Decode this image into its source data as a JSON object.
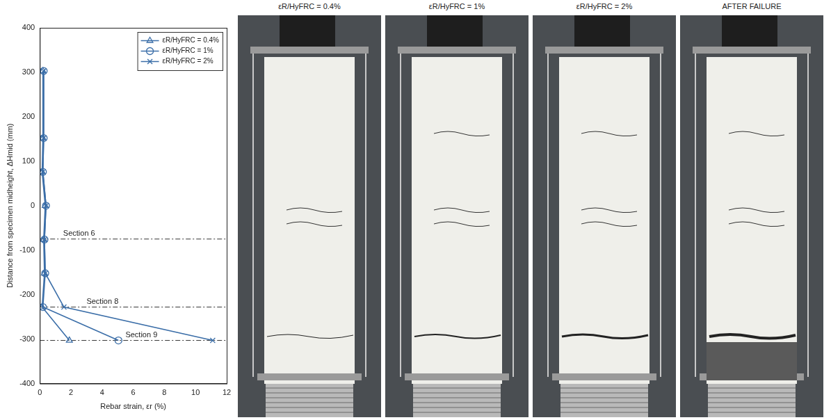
{
  "chart_data": {
    "type": "line",
    "x_label": "Rebar strain, εr (%)",
    "y_label": "Distance from specimen midheight, ΔHmid (mm)",
    "y": [
      303,
      152,
      76,
      0,
      -76,
      -152,
      -228,
      -303
    ],
    "series": [
      {
        "name": "εR/HyFRC = 0.4%",
        "color": "#3b6ea8",
        "marker": "triangle",
        "values": [
          0.2,
          0.2,
          0.15,
          0.35,
          0.25,
          0.3,
          0.15,
          1.9
        ]
      },
      {
        "name": "εR/HyFRC = 1%",
        "color": "#3b6ea8",
        "marker": "circle",
        "values": [
          0.25,
          0.25,
          0.2,
          0.4,
          0.3,
          0.35,
          0.2,
          5.05
        ]
      },
      {
        "name": "εR/HyFRC = 2%",
        "color": "#3b6ea8",
        "marker": "x",
        "values": [
          0.25,
          0.25,
          0.2,
          0.4,
          0.3,
          0.35,
          1.55,
          11.1
        ]
      }
    ],
    "annotations": [
      {
        "text": "Section 6",
        "x": 1.5,
        "y": -75
      },
      {
        "text": "Section 8",
        "x": 3.0,
        "y": -228
      },
      {
        "text": "Section 9",
        "x": 5.5,
        "y": -303
      }
    ],
    "xlim": [
      0,
      12
    ],
    "xticks": [
      0,
      2,
      4,
      6,
      8,
      10,
      12
    ],
    "ylim": [
      -400,
      400
    ],
    "yticks": [
      -400,
      -300,
      -200,
      -100,
      0,
      100,
      200,
      300,
      400
    ],
    "grid": false,
    "legend": "upper right"
  },
  "photos": {
    "titles": [
      "εR/HyFRC = 0.4%",
      "εR/HyFRC = 1%",
      "εR/HyFRC = 2%",
      "AFTER FAILURE"
    ]
  }
}
